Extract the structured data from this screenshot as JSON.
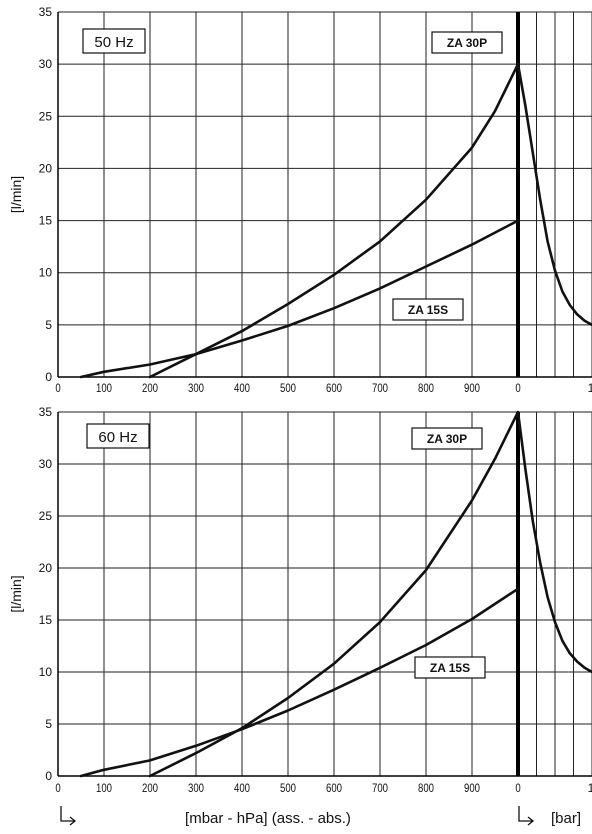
{
  "chart_data": [
    {
      "type": "line",
      "title": "50 Hz",
      "ylabel": "[l/min]",
      "ylim": [
        0,
        35
      ],
      "y_ticks": [
        "0",
        "5",
        "10",
        "15",
        "20",
        "25",
        "30",
        "35"
      ],
      "x_ticks_vacuum": [
        "0",
        "100",
        "200",
        "300",
        "400",
        "500",
        "600",
        "700",
        "800",
        "900",
        "0"
      ],
      "x_ticks_pressure": [
        "1"
      ],
      "grid": true,
      "series": [
        {
          "name": "ZA 30P",
          "vacuum": {
            "x": [
              200,
              300,
              400,
              500,
              600,
              700,
              800,
              900,
              950,
              1000
            ],
            "y": [
              0,
              2.2,
              4.4,
              7,
              9.8,
              13,
              17,
              22,
              25.5,
              30
            ]
          },
          "pressure": {
            "x": [
              0,
              0.1,
              0.2,
              0.3,
              0.4,
              0.5,
              0.6,
              0.7,
              0.8,
              0.9,
              1.0
            ],
            "y": [
              30,
              26,
              21.5,
              17,
              13,
              10.2,
              8.2,
              6.9,
              6.0,
              5.4,
              5.0
            ]
          }
        },
        {
          "name": "ZA 15S",
          "vacuum": {
            "x": [
              50,
              100,
              200,
              300,
              400,
              500,
              600,
              700,
              800,
              900,
              1000
            ],
            "y": [
              0,
              0.5,
              1.2,
              2.2,
              3.5,
              4.9,
              6.6,
              8.5,
              10.6,
              12.7,
              15
            ]
          }
        }
      ]
    },
    {
      "type": "line",
      "title": "60 Hz",
      "ylabel": "[l/min]",
      "ylim": [
        0,
        35
      ],
      "y_ticks": [
        "0",
        "5",
        "10",
        "15",
        "20",
        "25",
        "30",
        "35"
      ],
      "x_ticks_vacuum": [
        "0",
        "100",
        "200",
        "300",
        "400",
        "500",
        "600",
        "700",
        "800",
        "900",
        "0"
      ],
      "x_ticks_pressure": [
        "1"
      ],
      "grid": true,
      "series": [
        {
          "name": "ZA 30P",
          "vacuum": {
            "x": [
              200,
              300,
              400,
              500,
              600,
              700,
              800,
              900,
              950,
              1000
            ],
            "y": [
              0,
              2.2,
              4.6,
              7.5,
              10.8,
              14.8,
              19.8,
              26.5,
              30.5,
              35
            ]
          },
          "pressure": {
            "x": [
              0,
              0.1,
              0.2,
              0.3,
              0.4,
              0.5,
              0.6,
              0.7,
              0.8,
              0.9,
              1.0
            ],
            "y": [
              35,
              29.5,
              24.5,
              20.5,
              17.2,
              14.8,
              13.0,
              11.8,
              11.0,
              10.4,
              10.0
            ]
          }
        },
        {
          "name": "ZA 15S",
          "vacuum": {
            "x": [
              50,
              100,
              200,
              300,
              400,
              500,
              600,
              700,
              800,
              900,
              1000
            ],
            "y": [
              0,
              0.6,
              1.5,
              2.9,
              4.5,
              6.3,
              8.3,
              10.4,
              12.6,
              15.1,
              18
            ]
          }
        }
      ]
    }
  ],
  "x_axis": {
    "vacuum_label": "[mbar - hPa] (ass. - abs.)",
    "pressure_label": "[bar]"
  }
}
